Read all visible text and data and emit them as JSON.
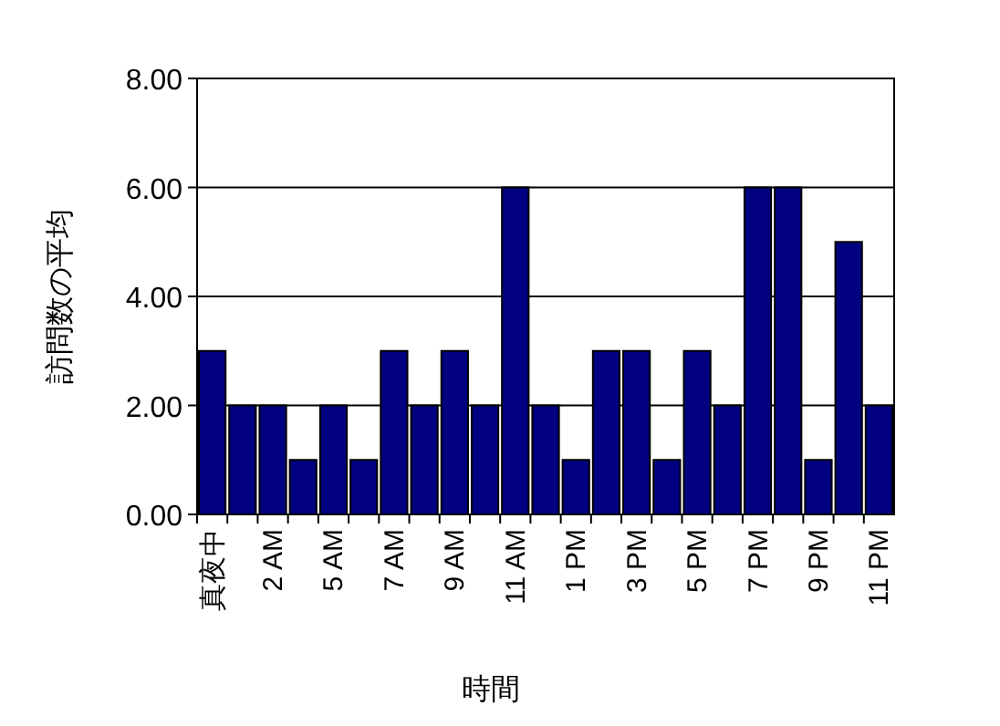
{
  "chart_data": {
    "type": "bar",
    "xlabel": "時間",
    "ylabel": "訪問数の平均",
    "categories": [
      "真夜中",
      null,
      "2 AM",
      null,
      "5 AM",
      null,
      "7 AM",
      null,
      "9 AM",
      null,
      "11 AM",
      null,
      "1 PM",
      null,
      "3 PM",
      null,
      "5 PM",
      null,
      "7 PM",
      null,
      "9 PM",
      null,
      "11 PM"
    ],
    "values": [
      3,
      2,
      2,
      1,
      2,
      1,
      3,
      2,
      3,
      2,
      6,
      2,
      1,
      3,
      3,
      1,
      3,
      2,
      6,
      6,
      1,
      5,
      2
    ],
    "color": "#000080",
    "ylim": [
      0,
      8
    ],
    "yticks": [
      {
        "value": 0,
        "label": "0.00"
      },
      {
        "value": 2,
        "label": "2.00"
      },
      {
        "value": 4,
        "label": "4.00"
      },
      {
        "value": 6,
        "label": "6.00"
      },
      {
        "value": 8,
        "label": "8.00"
      }
    ],
    "grid": "y"
  }
}
